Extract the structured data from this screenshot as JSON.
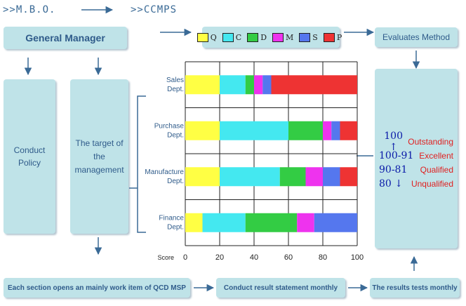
{
  "header": {
    "left": ">>M.B.O.",
    "right": ">>CCMPS"
  },
  "boxes": {
    "general_manager": "General Manager",
    "conduct_policy": "Conduct Policy",
    "target_management": "The target of the management",
    "evaluates_method": "Evaluates Method",
    "section_opens": "Each section opens an mainly work item of QCD MSP",
    "conduct_result": "Conduct result statement monthly",
    "results_tests": "The results tests monthly"
  },
  "legend": [
    {
      "label": "Q",
      "color": "#ffff44"
    },
    {
      "label": "C",
      "color": "#44e8f0"
    },
    {
      "label": "D",
      "color": "#33cc44"
    },
    {
      "label": "M",
      "color": "#ee33ee"
    },
    {
      "label": "S",
      "color": "#5577ee"
    },
    {
      "label": "P",
      "color": "#ee3333"
    }
  ],
  "evaluation": [
    {
      "score": "100 ↑",
      "label": "Outstanding"
    },
    {
      "score": "100-91",
      "label": "Excellent"
    },
    {
      "score": "90-81",
      "label": "Qualified"
    },
    {
      "score": "80 ↓",
      "label": "Unqualified"
    }
  ],
  "colors": {
    "box": "#bfe3e8",
    "text": "#2f5b8a",
    "arrow": "#3a6a96",
    "score_text": "#0a1aa8",
    "label_text": "#e02020"
  },
  "chart_data": {
    "type": "bar",
    "orientation": "horizontal",
    "stacked": true,
    "xlabel": "Score",
    "xlim": [
      0,
      100
    ],
    "xticks": [
      0,
      20,
      40,
      60,
      80,
      100
    ],
    "grid": true,
    "categories": [
      "Sales Dept.",
      "Purchase Dept.",
      "Manufacture Dept.",
      "Finance Dept."
    ],
    "series": [
      {
        "name": "Q",
        "values": [
          20,
          20,
          20,
          10
        ]
      },
      {
        "name": "C",
        "values": [
          15,
          40,
          35,
          25
        ]
      },
      {
        "name": "D",
        "values": [
          5,
          20,
          15,
          30
        ]
      },
      {
        "name": "M",
        "values": [
          5,
          5,
          10,
          10
        ]
      },
      {
        "name": "S",
        "values": [
          5,
          5,
          10,
          25
        ]
      },
      {
        "name": "P",
        "values": [
          50,
          10,
          10,
          0
        ]
      }
    ]
  }
}
